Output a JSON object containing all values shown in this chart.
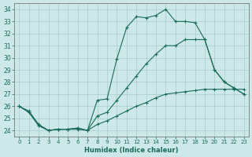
{
  "xlabel": "Humidex (Indice chaleur)",
  "xlim": [
    -0.5,
    23.5
  ],
  "ylim": [
    23.5,
    34.5
  ],
  "yticks": [
    24,
    25,
    26,
    27,
    28,
    29,
    30,
    31,
    32,
    33,
    34
  ],
  "xticks": [
    0,
    1,
    2,
    3,
    4,
    5,
    6,
    7,
    8,
    9,
    10,
    11,
    12,
    13,
    14,
    15,
    16,
    17,
    18,
    19,
    20,
    21,
    22,
    23
  ],
  "background_color": "#cce8e8",
  "grid_color": "#aacccc",
  "line_color": "#1a6b5a",
  "line1": [
    26.0,
    25.6,
    24.5,
    24.0,
    24.1,
    24.1,
    24.1,
    24.0,
    26.5,
    26.6,
    29.9,
    32.5,
    33.4,
    33.3,
    33.5,
    34.0,
    33.0,
    33.0,
    32.9,
    31.5,
    29.0,
    28.0,
    27.5,
    27.0
  ],
  "line2": [
    26.0,
    25.5,
    24.4,
    24.0,
    24.1,
    24.1,
    24.2,
    24.0,
    25.2,
    25.5,
    26.5,
    27.5,
    28.5,
    29.5,
    30.3,
    31.0,
    31.0,
    31.5,
    31.5,
    31.5,
    29.0,
    28.0,
    27.5,
    27.0
  ],
  "line3": [
    26.0,
    25.5,
    24.4,
    24.0,
    24.1,
    24.1,
    24.2,
    24.0,
    24.5,
    24.8,
    25.2,
    25.6,
    26.0,
    26.3,
    26.7,
    27.0,
    27.1,
    27.2,
    27.3,
    27.4,
    27.4,
    27.4,
    27.4,
    27.4
  ]
}
